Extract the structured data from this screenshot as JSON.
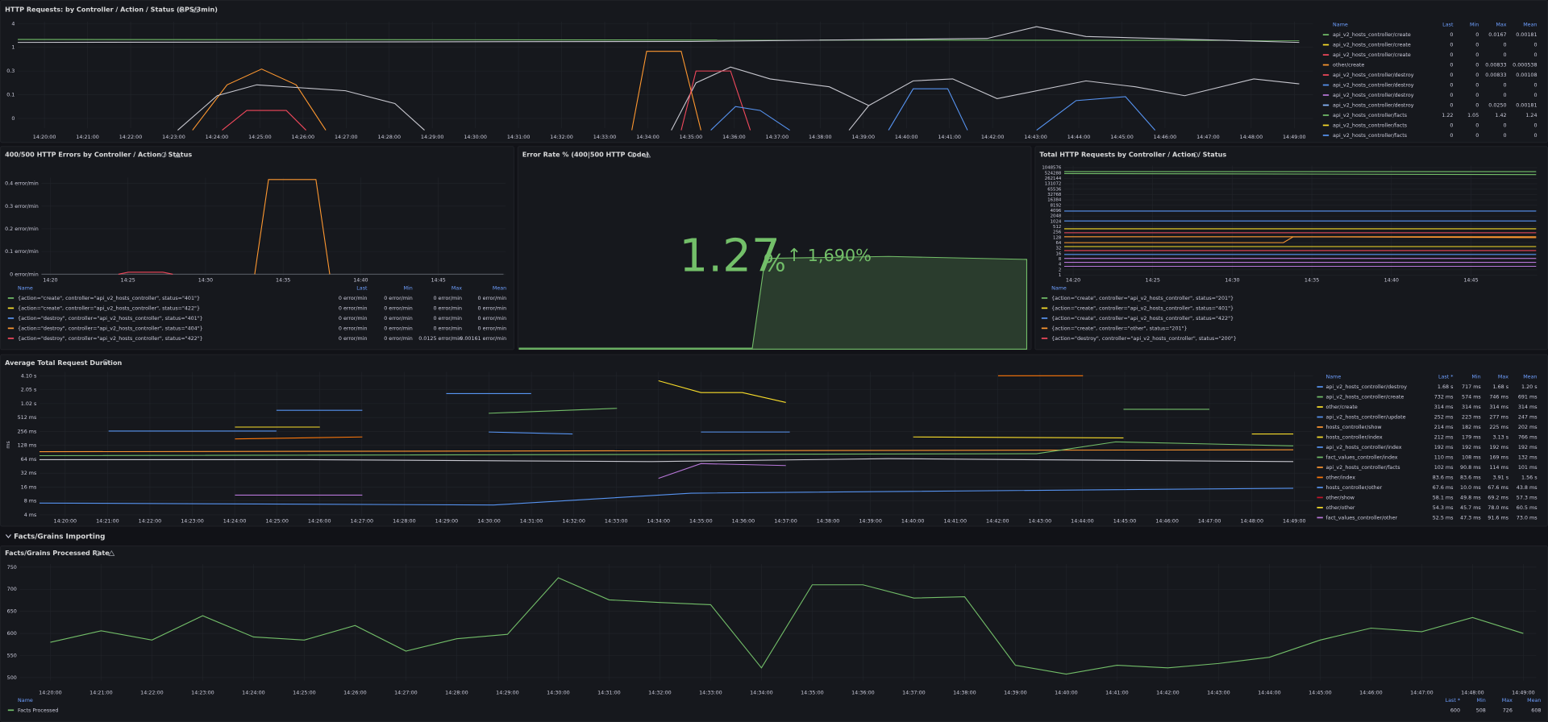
{
  "panels": [
    {
      "title": "HTTP Requests: by Controller / Action / Status (RPS/3min)",
      "yticks": [
        "4",
        "1",
        "0.3",
        "0.1",
        "0"
      ],
      "xticks": [
        "14:20:00",
        "14:21:00",
        "14:22:00",
        "14:23:00",
        "14:24:00",
        "14:25:00",
        "14:26:00",
        "14:27:00",
        "14:28:00",
        "14:29:00",
        "14:30:00",
        "14:31:00",
        "14:32:00",
        "14:33:00",
        "14:34:00",
        "14:35:00",
        "14:36:00",
        "14:37:00",
        "14:38:00",
        "14:39:00",
        "14:40:00",
        "14:41:00",
        "14:42:00",
        "14:43:00",
        "14:44:00",
        "14:45:00",
        "14:46:00",
        "14:47:00",
        "14:48:00",
        "14:49:00"
      ],
      "legend": {
        "columns": [
          "Name",
          "Last",
          "Min",
          "Max",
          "Mean"
        ],
        "rows": [
          {
            "color": "#73bf69",
            "cells": [
              "api_v2_hosts_controller/create",
              "0",
              "0",
              "0.0167",
              "0.00181"
            ]
          },
          {
            "color": "#fade2a",
            "cells": [
              "api_v2_hosts_controller/create",
              "0",
              "0",
              "0",
              "0"
            ]
          },
          {
            "color": "#f2495c",
            "cells": [
              "api_v2_hosts_controller/create",
              "0",
              "0",
              "0",
              "0"
            ]
          },
          {
            "color": "#ff9830",
            "cells": [
              "other/create",
              "0",
              "0",
              "0.00833",
              "0.000538"
            ]
          },
          {
            "color": "#f2495c",
            "cells": [
              "api_v2_hosts_controller/destroy",
              "0",
              "0",
              "0.00833",
              "0.00108"
            ]
          },
          {
            "color": "#5794f2",
            "cells": [
              "api_v2_hosts_controller/destroy",
              "0",
              "0",
              "0",
              "0"
            ]
          },
          {
            "color": "#b877d9",
            "cells": [
              "api_v2_hosts_controller/destroy",
              "0",
              "0",
              "0",
              "0"
            ]
          },
          {
            "color": "#8ab8ff",
            "cells": [
              "api_v2_hosts_controller/destroy",
              "0",
              "0",
              "0.0250",
              "0.00181"
            ]
          },
          {
            "color": "#73bf69",
            "cells": [
              "api_v2_hosts_controller/facts",
              "1.22",
              "1.05",
              "1.42",
              "1.24"
            ]
          },
          {
            "color": "#fade2a",
            "cells": [
              "api_v2_hosts_controller/facts",
              "0",
              "0",
              "0",
              "0"
            ]
          },
          {
            "color": "#5794f2",
            "cells": [
              "api_v2_hosts_controller/facts",
              "0",
              "0",
              "0",
              "0"
            ]
          }
        ]
      }
    },
    {
      "title": "400/500 HTTP Errors by Controller / Action / Status",
      "yticks": [
        "0.4 error/min",
        "0.3 error/min",
        "0.2 error/min",
        "0.1 error/min",
        "0 error/min"
      ],
      "xticks": [
        "14:20",
        "14:25",
        "14:30",
        "14:35",
        "14:40",
        "14:45"
      ],
      "legend": {
        "columns": [
          "Name",
          "Last",
          "Min",
          "Max",
          "Mean"
        ],
        "rows": [
          {
            "color": "#73bf69",
            "cells": [
              "{action=\"create\", controller=\"api_v2_hosts_controller\", status=\"401\"}",
              "0 error/min",
              "0 error/min",
              "0 error/min",
              "0 error/min"
            ]
          },
          {
            "color": "#fade2a",
            "cells": [
              "{action=\"create\", controller=\"api_v2_hosts_controller\", status=\"422\"}",
              "0 error/min",
              "0 error/min",
              "0 error/min",
              "0 error/min"
            ]
          },
          {
            "color": "#5794f2",
            "cells": [
              "{action=\"destroy\", controller=\"api_v2_hosts_controller\", status=\"401\"}",
              "0 error/min",
              "0 error/min",
              "0 error/min",
              "0 error/min"
            ]
          },
          {
            "color": "#ff9830",
            "cells": [
              "{action=\"destroy\", controller=\"api_v2_hosts_controller\", status=\"404\"}",
              "0 error/min",
              "0 error/min",
              "0 error/min",
              "0 error/min"
            ]
          },
          {
            "color": "#f2495c",
            "cells": [
              "{action=\"destroy\", controller=\"api_v2_hosts_controller\", status=\"422\"}",
              "0 error/min",
              "0 error/min",
              "0.0125 error/min",
              "0.00161 error/min"
            ]
          }
        ]
      }
    },
    {
      "title": "Error Rate % (400|500 HTTP Code)",
      "value": "1.27",
      "unit": "%",
      "change_arrow": "↑",
      "change": "1,690%"
    },
    {
      "title": "Total HTTP Requests by Controller / Action / Status",
      "yticks": [
        "1048576",
        "524288",
        "262144",
        "131072",
        "65536",
        "32768",
        "16384",
        "8192",
        "4096",
        "2048",
        "1024",
        "512",
        "256",
        "128",
        "64",
        "32",
        "16",
        "8",
        "4",
        "2",
        "1"
      ],
      "xticks": [
        "14:20",
        "14:25",
        "14:30",
        "14:35",
        "14:40",
        "14:45"
      ],
      "legend": {
        "columns": [
          "Name"
        ],
        "rows": [
          {
            "color": "#73bf69",
            "cells": [
              "{action=\"create\", controller=\"api_v2_hosts_controller\", status=\"201\"}"
            ]
          },
          {
            "color": "#fade2a",
            "cells": [
              "{action=\"create\", controller=\"api_v2_hosts_controller\", status=\"401\"}"
            ]
          },
          {
            "color": "#5794f2",
            "cells": [
              "{action=\"create\", controller=\"api_v2_hosts_controller\", status=\"422\"}"
            ]
          },
          {
            "color": "#ff9830",
            "cells": [
              "{action=\"create\", controller=\"other\", status=\"201\"}"
            ]
          },
          {
            "color": "#f2495c",
            "cells": [
              "{action=\"destroy\", controller=\"api_v2_hosts_controller\", status=\"200\"}"
            ]
          }
        ]
      }
    },
    {
      "title": "Average Total Request Duration",
      "axis_label": "ms",
      "yticks": [
        "4.10 s",
        "2.05 s",
        "1.02 s",
        "512 ms",
        "256 ms",
        "128 ms",
        "64 ms",
        "32 ms",
        "16 ms",
        "8 ms",
        "4 ms"
      ],
      "xticks": [
        "14:20:00",
        "14:21:00",
        "14:22:00",
        "14:23:00",
        "14:24:00",
        "14:25:00",
        "14:26:00",
        "14:27:00",
        "14:28:00",
        "14:29:00",
        "14:30:00",
        "14:31:00",
        "14:32:00",
        "14:33:00",
        "14:34:00",
        "14:35:00",
        "14:36:00",
        "14:37:00",
        "14:38:00",
        "14:39:00",
        "14:40:00",
        "14:41:00",
        "14:42:00",
        "14:43:00",
        "14:44:00",
        "14:45:00",
        "14:46:00",
        "14:47:00",
        "14:48:00",
        "14:49:00"
      ],
      "legend": {
        "columns": [
          "Name",
          "Last *",
          "Min",
          "Max",
          "Mean"
        ],
        "rows": [
          {
            "color": "#5794f2",
            "cells": [
              "api_v2_hosts_controller/destroy",
              "1.68 s",
              "717 ms",
              "1.68 s",
              "1.20 s"
            ]
          },
          {
            "color": "#73bf69",
            "cells": [
              "api_v2_hosts_controller/create",
              "732 ms",
              "574 ms",
              "746 ms",
              "691 ms"
            ]
          },
          {
            "color": "#fade2a",
            "cells": [
              "other/create",
              "314 ms",
              "314 ms",
              "314 ms",
              "314 ms"
            ]
          },
          {
            "color": "#5794f2",
            "cells": [
              "api_v2_hosts_controller/update",
              "252 ms",
              "223 ms",
              "277 ms",
              "247 ms"
            ]
          },
          {
            "color": "#ff9830",
            "cells": [
              "hosts_controller/show",
              "214 ms",
              "182 ms",
              "225 ms",
              "202 ms"
            ]
          },
          {
            "color": "#fade2a",
            "cells": [
              "hosts_controller/index",
              "212 ms",
              "179 ms",
              "3.13 s",
              "766 ms"
            ]
          },
          {
            "color": "#5794f2",
            "cells": [
              "api_v2_hosts_controller/index",
              "192 ms",
              "192 ms",
              "192 ms",
              "192 ms"
            ]
          },
          {
            "color": "#73bf69",
            "cells": [
              "fact_values_controller/index",
              "110 ms",
              "108 ms",
              "169 ms",
              "132 ms"
            ]
          },
          {
            "color": "#ff9830",
            "cells": [
              "api_v2_hosts_controller/facts",
              "102 ms",
              "90.8 ms",
              "114 ms",
              "101 ms"
            ]
          },
          {
            "color": "#ff780a",
            "cells": [
              "other/index",
              "83.6 ms",
              "83.6 ms",
              "3.91 s",
              "1.56 s"
            ]
          },
          {
            "color": "#5794f2",
            "cells": [
              "hosts_controller/other",
              "67.6 ms",
              "10.0 ms",
              "67.6 ms",
              "43.8 ms"
            ]
          },
          {
            "color": "#c4162a",
            "cells": [
              "other/show",
              "58.1 ms",
              "49.8 ms",
              "69.2 ms",
              "57.3 ms"
            ]
          },
          {
            "color": "#fade2a",
            "cells": [
              "other/other",
              "54.3 ms",
              "45.7 ms",
              "78.0 ms",
              "60.5 ms"
            ]
          },
          {
            "color": "#b877d9",
            "cells": [
              "fact_values_controller/other",
              "52.5 ms",
              "47.3 ms",
              "91.6 ms",
              "73.0 ms"
            ]
          }
        ]
      }
    },
    {
      "title": "Facts/Grains Processed Rate",
      "type": "line",
      "color": "#73bf69",
      "ylim": [
        500,
        750
      ],
      "yticks": [
        750,
        700,
        650,
        600,
        550,
        500
      ],
      "xticks": [
        "14:20:00",
        "14:21:00",
        "14:22:00",
        "14:23:00",
        "14:24:00",
        "14:25:00",
        "14:26:00",
        "14:27:00",
        "14:28:00",
        "14:29:00",
        "14:30:00",
        "14:31:00",
        "14:32:00",
        "14:33:00",
        "14:34:00",
        "14:35:00",
        "14:36:00",
        "14:37:00",
        "14:38:00",
        "14:39:00",
        "14:40:00",
        "14:41:00",
        "14:42:00",
        "14:43:00",
        "14:44:00",
        "14:45:00",
        "14:46:00",
        "14:47:00",
        "14:48:00",
        "14:49:00"
      ],
      "values": [
        580,
        606,
        585,
        640,
        592,
        585,
        618,
        560,
        588,
        598,
        726,
        676,
        670,
        665,
        522,
        710,
        710,
        680,
        683,
        528,
        508,
        528,
        522,
        532,
        546,
        585,
        612,
        604,
        636,
        600
      ],
      "legend": {
        "columns": [
          "Name",
          "Last *",
          "Min",
          "Max",
          "Mean"
        ],
        "rows": [
          {
            "color": "#73bf69",
            "cells": [
              "Facts Processed",
              "600",
              "508",
              "726",
              "608"
            ]
          }
        ]
      }
    }
  ],
  "row_header": "Facts/Grains Importing"
}
